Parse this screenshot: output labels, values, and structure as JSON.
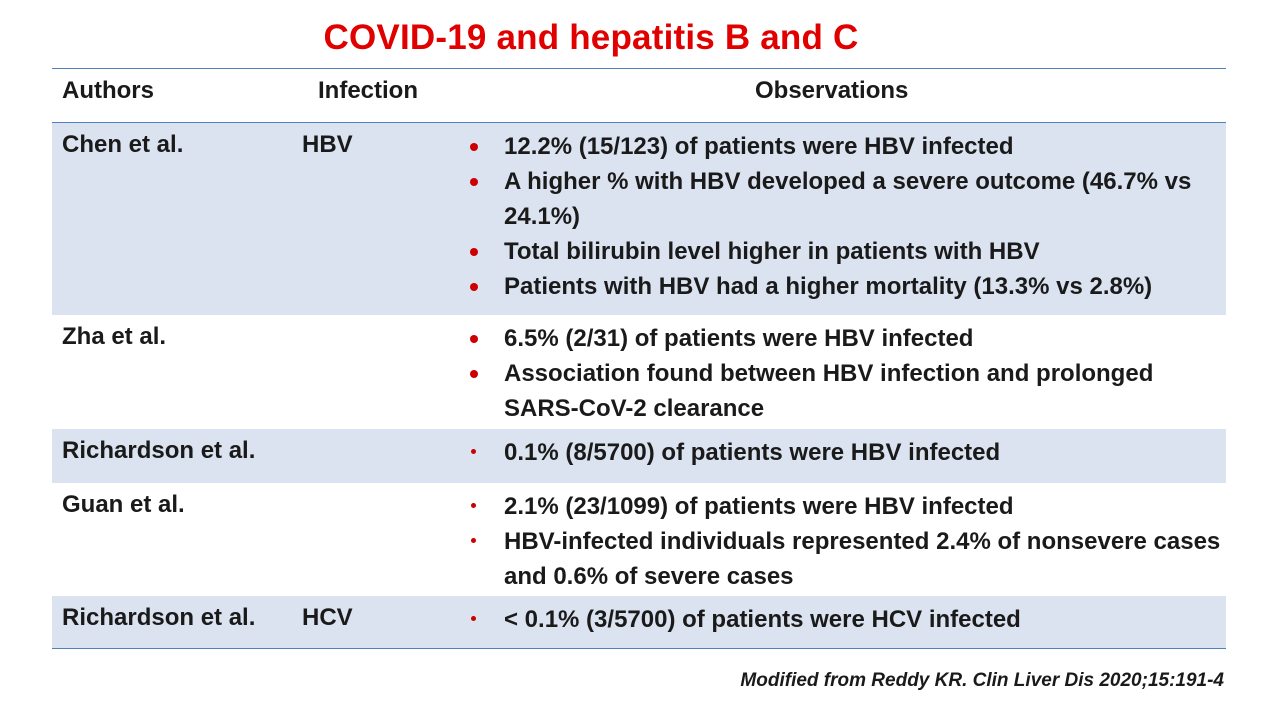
{
  "title": "COVID-19 and hepatitis B and C",
  "headers": {
    "authors": "Authors",
    "infection": "Infection",
    "observations": "Observations"
  },
  "rows": [
    {
      "author": "Chen et al.",
      "infection": "HBV",
      "observations": [
        "12.2% (15/123) of patients were HBV infected",
        "A higher % with HBV developed a severe outcome (46.7% vs 24.1%)",
        "Total bilirubin level higher in patients with HBV",
        "Patients with HBV had a higher mortality (13.3% vs 2.8%)"
      ]
    },
    {
      "author": "Zha et al.",
      "infection": "",
      "observations": [
        "6.5% (2/31) of patients were HBV infected",
        "Association found between HBV infection and prolonged  SARS-CoV-2 clearance"
      ]
    },
    {
      "author": "Richardson et al.",
      "infection": "",
      "observations": [
        "0.1% (8/5700) of patients were HBV infected"
      ]
    },
    {
      "author": "Guan et al.",
      "infection": "",
      "observations": [
        "2.1% (23/1099) of patients were HBV infected",
        "HBV-infected individuals represented 2.4% of nonsevere cases and 0.6% of severe cases"
      ]
    },
    {
      "author": "Richardson et al.",
      "infection": "HCV",
      "observations": [
        "< 0.1% (3/5700) of patients were HCV infected"
      ]
    }
  ],
  "footnote": "Modified from Reddy KR. Clin Liver Dis 2020;15:191-4",
  "colors": {
    "title": "#e00000",
    "bullet": "#cc0000",
    "shaded_row": "#dbe3f1",
    "rule": "#4f81bd"
  }
}
